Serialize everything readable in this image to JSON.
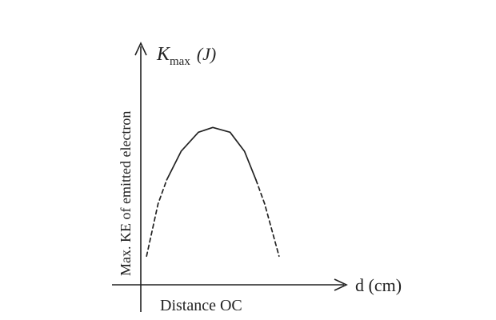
{
  "chart_data": {
    "type": "line",
    "title": "",
    "y_axis": {
      "symbol": "K",
      "subscript": "max",
      "unit": "(J)",
      "label": "Max. KE of emitted electron"
    },
    "x_axis": {
      "arrow_label": "d (cm)",
      "label": "Distance OC"
    },
    "grid": false,
    "legend": "none",
    "ticks": false,
    "series": [
      {
        "curve": "inverted-parabola",
        "x": [
          0.04,
          0.12,
          0.18,
          0.28,
          0.4,
          0.5,
          0.62,
          0.72,
          0.8,
          0.86,
          0.96
        ],
        "y": [
          0.12,
          0.34,
          0.44,
          0.56,
          0.64,
          0.66,
          0.64,
          0.56,
          0.44,
          0.34,
          0.12
        ],
        "style": [
          "dashed",
          "dashed",
          "solid",
          "solid",
          "solid",
          "solid",
          "solid",
          "solid",
          "solid",
          "dashed",
          "dashed"
        ]
      }
    ]
  }
}
